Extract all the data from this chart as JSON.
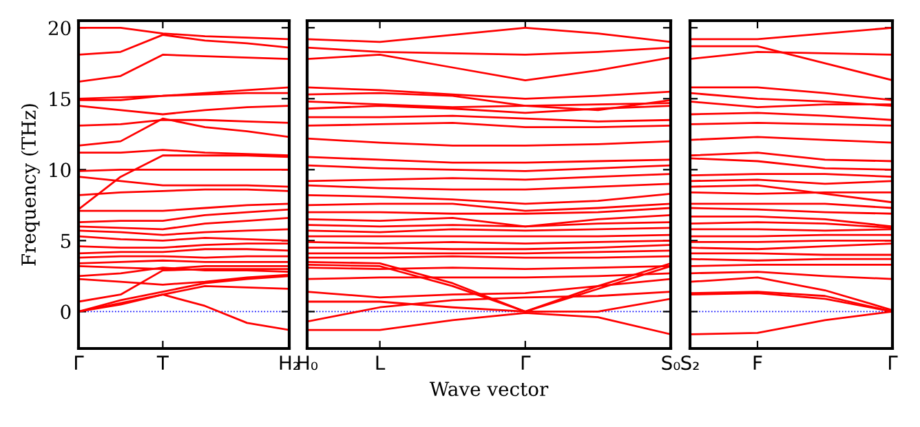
{
  "chart_data": [
    {
      "type": "line",
      "ylabel": "Frequency (THz)",
      "categories": [
        "Γ",
        null,
        "T",
        null,
        null,
        "H₂"
      ],
      "ylim": [
        -2.6,
        20.5
      ],
      "yticks": [
        0,
        5,
        10,
        15,
        20
      ],
      "tick_labels": "xy",
      "ref_lines": [
        {
          "axis": "y",
          "value": 0,
          "color": "#0000ff",
          "line_style": "dotted"
        }
      ],
      "series": [
        {
          "color": "#ff0000",
          "values": [
            20.0,
            20.0,
            19.6,
            19.4,
            19.3,
            19.2
          ]
        },
        {
          "color": "#ff0000",
          "values": [
            18.1,
            18.3,
            19.5,
            19.1,
            18.9,
            18.6
          ]
        },
        {
          "color": "#ff0000",
          "values": [
            16.2,
            16.6,
            18.1,
            18.0,
            17.9,
            17.8
          ]
        },
        {
          "color": "#ff0000",
          "values": [
            15.0,
            15.1,
            15.2,
            15.4,
            15.6,
            15.8
          ]
        },
        {
          "color": "#ff0000",
          "values": [
            14.9,
            14.9,
            15.2,
            15.3,
            15.4,
            15.4
          ]
        },
        {
          "color": "#ff0000",
          "values": [
            14.5,
            14.2,
            13.9,
            14.2,
            14.4,
            14.5
          ]
        },
        {
          "color": "#ff0000",
          "values": [
            13.1,
            13.2,
            13.5,
            13.5,
            13.4,
            13.3
          ]
        },
        {
          "color": "#ff0000",
          "values": [
            11.7,
            12.0,
            13.6,
            13.0,
            12.7,
            12.3
          ]
        },
        {
          "color": "#ff0000",
          "values": [
            11.2,
            11.2,
            11.4,
            11.2,
            11.1,
            11.0
          ]
        },
        {
          "color": "#ff0000",
          "values": [
            9.9,
            10.0,
            10.0,
            10.0,
            10.0,
            10.0
          ]
        },
        {
          "color": "#ff0000",
          "values": [
            9.5,
            9.2,
            8.9,
            8.9,
            8.9,
            8.8
          ]
        },
        {
          "color": "#ff0000",
          "values": [
            7.2,
            9.5,
            11.0,
            11.0,
            11.0,
            10.9
          ]
        },
        {
          "color": "#ff0000",
          "values": [
            8.2,
            8.4,
            8.5,
            8.6,
            8.6,
            8.5
          ]
        },
        {
          "color": "#ff0000",
          "values": [
            7.1,
            7.1,
            7.1,
            7.3,
            7.5,
            7.6
          ]
        },
        {
          "color": "#ff0000",
          "values": [
            6.3,
            6.4,
            6.4,
            6.8,
            7.0,
            7.2
          ]
        },
        {
          "color": "#ff0000",
          "values": [
            6.0,
            5.9,
            5.8,
            6.2,
            6.4,
            6.6
          ]
        },
        {
          "color": "#ff0000",
          "values": [
            5.7,
            5.6,
            5.4,
            5.6,
            5.7,
            5.8
          ]
        },
        {
          "color": "#ff0000",
          "values": [
            5.3,
            5.1,
            5.0,
            5.2,
            5.1,
            5.0
          ]
        },
        {
          "color": "#ff0000",
          "values": [
            4.6,
            4.5,
            4.5,
            4.7,
            4.8,
            4.8
          ]
        },
        {
          "color": "#ff0000",
          "values": [
            4.1,
            4.2,
            4.2,
            4.4,
            4.4,
            4.3
          ]
        },
        {
          "color": "#ff0000",
          "values": [
            3.8,
            3.9,
            3.9,
            3.8,
            3.9,
            3.9
          ]
        },
        {
          "color": "#ff0000",
          "values": [
            3.4,
            3.5,
            3.6,
            3.5,
            3.5,
            3.5
          ]
        },
        {
          "color": "#ff0000",
          "values": [
            3.2,
            3.1,
            3.0,
            3.2,
            3.2,
            3.2
          ]
        },
        {
          "color": "#ff0000",
          "values": [
            2.5,
            2.7,
            3.1,
            2.9,
            2.9,
            2.8
          ]
        },
        {
          "color": "#ff0000",
          "values": [
            2.3,
            2.1,
            1.9,
            2.1,
            2.4,
            2.6
          ]
        },
        {
          "color": "#ff0000",
          "values": [
            0.7,
            1.2,
            2.9,
            3.0,
            3.0,
            3.0
          ]
        },
        {
          "color": "#ff0000",
          "values": [
            0.0,
            0.8,
            1.4,
            2.0,
            2.3,
            2.5
          ]
        },
        {
          "color": "#ff0000",
          "values": [
            0.0,
            0.6,
            1.2,
            1.8,
            1.7,
            1.6
          ]
        },
        {
          "color": "#ff0000",
          "values": [
            0.0,
            0.5,
            1.2,
            0.4,
            -0.8,
            -1.3
          ]
        }
      ]
    },
    {
      "type": "line",
      "xlabel": "Wave vector",
      "categories": [
        "H₀",
        "L",
        null,
        "Γ",
        null,
        "S₀"
      ],
      "ylim": [
        -2.6,
        20.5
      ],
      "yticks": [
        {
          "value": 0,
          "label": null
        },
        {
          "value": 5,
          "label": null
        },
        {
          "value": 10,
          "label": null
        },
        {
          "value": 15,
          "label": null
        },
        {
          "value": 20,
          "label": null
        }
      ],
      "tick_labels": "x",
      "ref_lines": [
        {
          "axis": "y",
          "value": 0,
          "color": "#0000ff",
          "line_style": "dotted"
        }
      ],
      "series": [
        {
          "color": "#ff0000",
          "values": [
            19.2,
            19.0,
            19.5,
            20.0,
            19.6,
            19.0
          ]
        },
        {
          "color": "#ff0000",
          "values": [
            18.6,
            18.3,
            18.2,
            18.1,
            18.3,
            18.6
          ]
        },
        {
          "color": "#ff0000",
          "values": [
            17.8,
            18.1,
            17.2,
            16.3,
            17.0,
            17.9
          ]
        },
        {
          "color": "#ff0000",
          "values": [
            15.8,
            15.6,
            15.3,
            15.0,
            15.2,
            15.5
          ]
        },
        {
          "color": "#ff0000",
          "values": [
            15.3,
            15.4,
            15.2,
            14.5,
            14.2,
            14.9
          ]
        },
        {
          "color": "#ff0000",
          "values": [
            14.8,
            14.6,
            14.4,
            14.5,
            14.6,
            14.7
          ]
        },
        {
          "color": "#ff0000",
          "values": [
            14.3,
            14.5,
            14.3,
            14.0,
            14.3,
            14.5
          ]
        },
        {
          "color": "#ff0000",
          "values": [
            13.7,
            13.7,
            13.8,
            13.6,
            13.4,
            13.5
          ]
        },
        {
          "color": "#ff0000",
          "values": [
            13.1,
            13.2,
            13.3,
            13.0,
            13.0,
            13.1
          ]
        },
        {
          "color": "#ff0000",
          "values": [
            12.2,
            11.9,
            11.7,
            11.7,
            11.8,
            12.0
          ]
        },
        {
          "color": "#ff0000",
          "values": [
            10.9,
            10.7,
            10.5,
            10.5,
            10.6,
            10.7
          ]
        },
        {
          "color": "#ff0000",
          "values": [
            10.3,
            10.1,
            10.0,
            9.9,
            10.1,
            10.3
          ]
        },
        {
          "color": "#ff0000",
          "values": [
            9.2,
            9.3,
            9.4,
            9.3,
            9.5,
            9.7
          ]
        },
        {
          "color": "#ff0000",
          "values": [
            8.9,
            8.7,
            8.6,
            8.6,
            8.8,
            9.0
          ]
        },
        {
          "color": "#ff0000",
          "values": [
            8.2,
            8.1,
            7.9,
            7.6,
            7.8,
            8.3
          ]
        },
        {
          "color": "#ff0000",
          "values": [
            7.5,
            7.6,
            7.6,
            7.1,
            7.3,
            7.6
          ]
        },
        {
          "color": "#ff0000",
          "values": [
            7.0,
            7.0,
            6.9,
            6.9,
            7.0,
            7.3
          ]
        },
        {
          "color": "#ff0000",
          "values": [
            6.5,
            6.4,
            6.6,
            6.0,
            6.5,
            6.8
          ]
        },
        {
          "color": "#ff0000",
          "values": [
            6.1,
            6.0,
            6.1,
            6.0,
            6.2,
            6.3
          ]
        },
        {
          "color": "#ff0000",
          "values": [
            5.7,
            5.6,
            5.8,
            5.7,
            5.8,
            5.9
          ]
        },
        {
          "color": "#ff0000",
          "values": [
            5.3,
            5.3,
            5.3,
            5.3,
            5.3,
            5.4
          ]
        },
        {
          "color": "#ff0000",
          "values": [
            4.9,
            4.8,
            4.9,
            4.8,
            4.9,
            5.0
          ]
        },
        {
          "color": "#ff0000",
          "values": [
            4.5,
            4.5,
            4.4,
            4.4,
            4.5,
            4.7
          ]
        },
        {
          "color": "#ff0000",
          "values": [
            4.1,
            4.1,
            4.1,
            4.1,
            4.2,
            4.3
          ]
        },
        {
          "color": "#ff0000",
          "values": [
            3.8,
            3.8,
            3.9,
            3.8,
            3.8,
            3.9
          ]
        },
        {
          "color": "#ff0000",
          "values": [
            3.5,
            3.4,
            2.0,
            0.0,
            1.8,
            3.4
          ]
        },
        {
          "color": "#ff0000",
          "values": [
            3.3,
            3.2,
            1.8,
            0.0,
            1.6,
            3.2
          ]
        },
        {
          "color": "#ff0000",
          "values": [
            3.1,
            3.0,
            3.1,
            3.0,
            3.1,
            3.2
          ]
        },
        {
          "color": "#ff0000",
          "values": [
            2.3,
            2.4,
            2.4,
            2.4,
            2.5,
            2.7
          ]
        },
        {
          "color": "#ff0000",
          "values": [
            1.4,
            1.0,
            1.2,
            1.3,
            1.8,
            2.3
          ]
        },
        {
          "color": "#ff0000",
          "values": [
            0.7,
            0.7,
            0.3,
            0.0,
            0.0,
            0.9
          ]
        },
        {
          "color": "#ff0000",
          "values": [
            -0.7,
            0.3,
            0.8,
            1.0,
            1.1,
            1.4
          ]
        },
        {
          "color": "#ff0000",
          "values": [
            -1.3,
            -1.3,
            -0.6,
            -0.1,
            -0.4,
            -1.6
          ]
        }
      ]
    },
    {
      "type": "line",
      "categories": [
        "S₂",
        "F",
        null,
        "Γ"
      ],
      "ylim": [
        -2.6,
        20.5
      ],
      "yticks": [
        {
          "value": 0,
          "label": null
        },
        {
          "value": 5,
          "label": null
        },
        {
          "value": 10,
          "label": null
        },
        {
          "value": 15,
          "label": null
        },
        {
          "value": 20,
          "label": null
        }
      ],
      "tick_labels": "x",
      "ref_lines": [
        {
          "axis": "y",
          "value": 0,
          "color": "#0000ff",
          "line_style": "dotted"
        }
      ],
      "series": [
        {
          "color": "#ff0000",
          "values": [
            19.2,
            19.2,
            19.6,
            20.0
          ]
        },
        {
          "color": "#ff0000",
          "values": [
            18.7,
            18.7,
            17.5,
            16.3
          ]
        },
        {
          "color": "#ff0000",
          "values": [
            17.8,
            18.3,
            18.2,
            18.1
          ]
        },
        {
          "color": "#ff0000",
          "values": [
            15.8,
            15.8,
            15.4,
            14.9
          ]
        },
        {
          "color": "#ff0000",
          "values": [
            15.4,
            15.0,
            14.8,
            14.5
          ]
        },
        {
          "color": "#ff0000",
          "values": [
            14.8,
            14.4,
            14.6,
            14.6
          ]
        },
        {
          "color": "#ff0000",
          "values": [
            13.9,
            14.0,
            13.8,
            13.5
          ]
        },
        {
          "color": "#ff0000",
          "values": [
            13.2,
            13.3,
            13.2,
            13.1
          ]
        },
        {
          "color": "#ff0000",
          "values": [
            12.1,
            12.3,
            12.1,
            11.9
          ]
        },
        {
          "color": "#ff0000",
          "values": [
            11.0,
            11.2,
            10.7,
            10.6
          ]
        },
        {
          "color": "#ff0000",
          "values": [
            10.8,
            10.6,
            10.1,
            10.0
          ]
        },
        {
          "color": "#ff0000",
          "values": [
            9.6,
            9.7,
            9.7,
            9.5
          ]
        },
        {
          "color": "#ff0000",
          "values": [
            9.2,
            9.3,
            9.0,
            9.2
          ]
        },
        {
          "color": "#ff0000",
          "values": [
            8.8,
            8.9,
            8.3,
            7.7
          ]
        },
        {
          "color": "#ff0000",
          "values": [
            8.4,
            8.3,
            8.4,
            8.4
          ]
        },
        {
          "color": "#ff0000",
          "values": [
            7.6,
            7.6,
            7.6,
            7.3
          ]
        },
        {
          "color": "#ff0000",
          "values": [
            7.3,
            7.2,
            7.0,
            6.9
          ]
        },
        {
          "color": "#ff0000",
          "values": [
            6.7,
            6.7,
            6.5,
            6.0
          ]
        },
        {
          "color": "#ff0000",
          "values": [
            6.2,
            6.3,
            6.2,
            5.9
          ]
        },
        {
          "color": "#ff0000",
          "values": [
            5.8,
            5.8,
            5.7,
            5.8
          ]
        },
        {
          "color": "#ff0000",
          "values": [
            5.3,
            5.3,
            5.4,
            5.4
          ]
        },
        {
          "color": "#ff0000",
          "values": [
            4.9,
            4.9,
            5.0,
            5.0
          ]
        },
        {
          "color": "#ff0000",
          "values": [
            4.5,
            4.4,
            4.6,
            4.8
          ]
        },
        {
          "color": "#ff0000",
          "values": [
            4.1,
            4.1,
            4.0,
            4.0
          ]
        },
        {
          "color": "#ff0000",
          "values": [
            3.7,
            3.6,
            3.7,
            3.7
          ]
        },
        {
          "color": "#ff0000",
          "values": [
            3.2,
            3.3,
            3.3,
            3.3
          ]
        },
        {
          "color": "#ff0000",
          "values": [
            2.7,
            2.8,
            2.5,
            2.3
          ]
        },
        {
          "color": "#ff0000",
          "values": [
            2.1,
            2.4,
            1.5,
            0.1
          ]
        },
        {
          "color": "#ff0000",
          "values": [
            1.3,
            1.4,
            1.1,
            0.0
          ]
        },
        {
          "color": "#ff0000",
          "values": [
            1.2,
            1.3,
            0.9,
            0.0
          ]
        },
        {
          "color": "#ff0000",
          "values": [
            -1.6,
            -1.5,
            -0.6,
            0.0
          ]
        }
      ]
    }
  ]
}
